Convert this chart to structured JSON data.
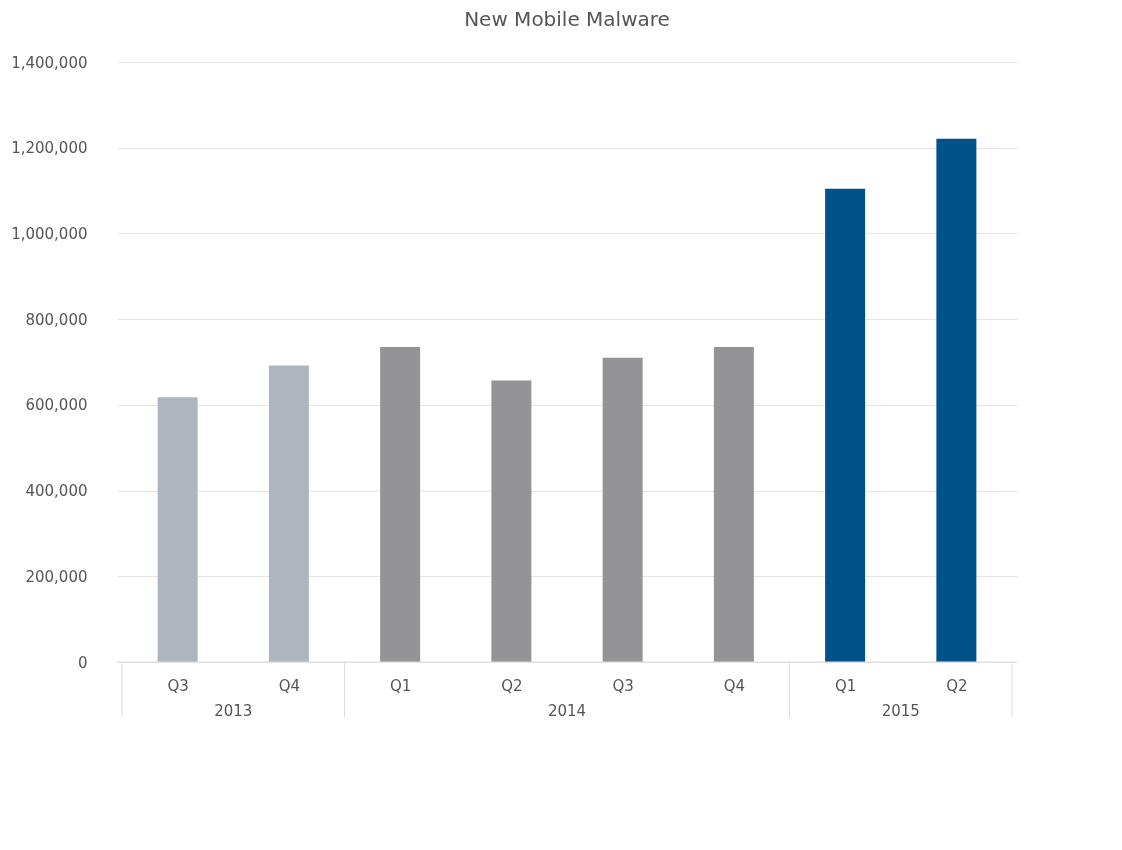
{
  "chart_data": {
    "type": "bar",
    "title": "New Mobile Malware",
    "categories": [
      "Q3",
      "Q4",
      "Q1",
      "Q2",
      "Q3",
      "Q4",
      "Q1",
      "Q2"
    ],
    "values": [
      618000,
      692000,
      735000,
      657000,
      710000,
      735000,
      1104000,
      1221000
    ],
    "colors": [
      "#adb5bd",
      "#adb5bd",
      "#949497",
      "#949497",
      "#949497",
      "#949497",
      "#005288",
      "#005288"
    ],
    "ylim": [
      0,
      1400000
    ],
    "yticks": [
      {
        "value": 0,
        "label": "0"
      },
      {
        "value": 200000,
        "label": "200,000"
      },
      {
        "value": 400000,
        "label": "400,000"
      },
      {
        "value": 600000,
        "label": "600,000"
      },
      {
        "value": 800000,
        "label": "800,000"
      },
      {
        "value": 1000000,
        "label": "1,000,000"
      },
      {
        "value": 1200000,
        "label": "1,200,000"
      },
      {
        "value": 1400000,
        "label": "1,400,000"
      }
    ],
    "grid": "y",
    "annotations": [
      "2013",
      "2014",
      "2015"
    ]
  }
}
